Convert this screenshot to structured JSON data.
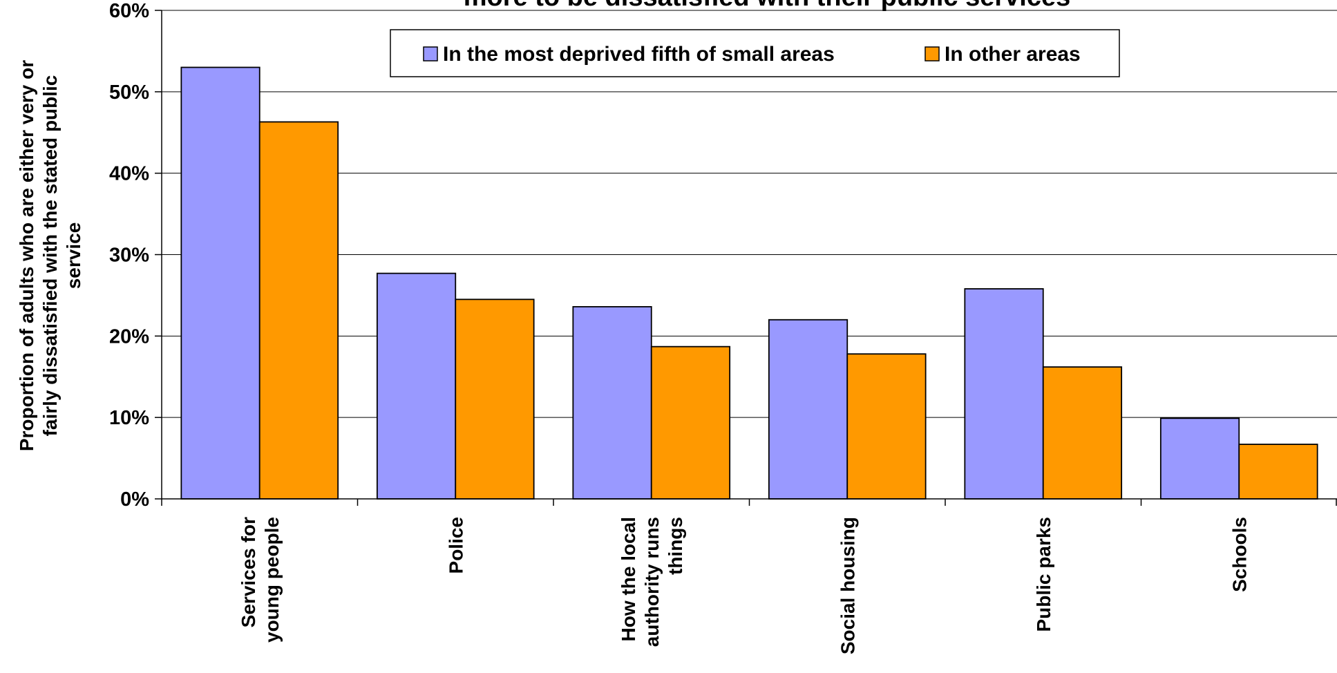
{
  "chart_data": {
    "type": "bar",
    "title": "more to be dissatisfied with their public services",
    "ylabel_lines": [
      "Proportion of adults who are either very or",
      "fairly dissatisfied with the stated public",
      "service"
    ],
    "xlabel": "",
    "ylim": [
      0,
      60
    ],
    "yticks": [
      0,
      10,
      20,
      30,
      40,
      50,
      60
    ],
    "ytick_labels": [
      "0%",
      "10%",
      "20%",
      "30%",
      "40%",
      "50%",
      "60%"
    ],
    "grid": true,
    "legend_position": "top-center",
    "categories": [
      [
        "Services for",
        "young people"
      ],
      [
        "Police"
      ],
      [
        "How the local",
        "authority runs",
        "things"
      ],
      [
        "Social housing"
      ],
      [
        "Public parks"
      ],
      [
        "Schools"
      ]
    ],
    "series": [
      {
        "name": "In the most deprived fifth of small areas",
        "color": "#9999ff",
        "values": [
          53,
          27.7,
          23.6,
          22,
          25.8,
          9.9
        ]
      },
      {
        "name": "In other areas",
        "color": "#ff9900",
        "values": [
          46.3,
          24.5,
          18.7,
          17.8,
          16.2,
          6.7
        ]
      }
    ]
  }
}
